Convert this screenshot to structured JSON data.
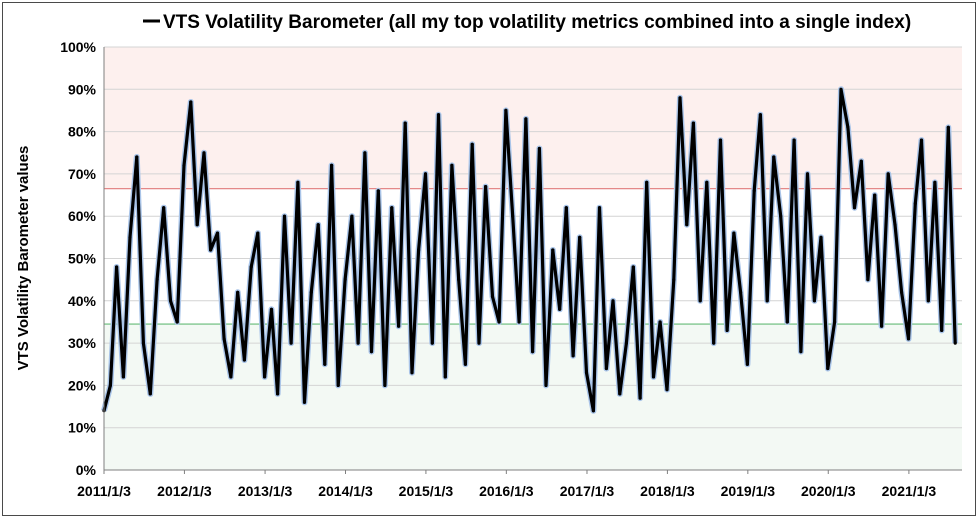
{
  "chart_data": {
    "type": "line",
    "title": "VTS Volatility Barometer  (all my top volatility metrics combined into a single index)",
    "legend": {
      "entry": "VTS Volatility Barometer  (all my top volatility metrics combined into a single index)",
      "placement": "top"
    },
    "ylabel": "VTS Volatility Barometer values",
    "xlabel": "",
    "y_unit": "percent",
    "ylim": [
      0,
      100
    ],
    "y_ticks": [
      0,
      10,
      20,
      30,
      40,
      50,
      60,
      70,
      80,
      90,
      100
    ],
    "y_tick_labels": [
      "0%",
      "10%",
      "20%",
      "30%",
      "40%",
      "50%",
      "60%",
      "70%",
      "80%",
      "90%",
      "100%"
    ],
    "x_ticks": [
      "2011/1/3",
      "2012/1/3",
      "2013/1/3",
      "2014/1/3",
      "2015/1/3",
      "2016/1/3",
      "2017/1/3",
      "2018/1/3",
      "2019/1/3",
      "2020/1/3",
      "2021/1/3"
    ],
    "xlim": [
      "2011/1/3",
      "2021/9/1"
    ],
    "grid": true,
    "reference_lines": [
      {
        "value": 66.5,
        "color": "#e07a7a"
      },
      {
        "value": 34.5,
        "color": "#66bb77"
      }
    ],
    "zones": [
      {
        "from": 66.5,
        "to": 100,
        "color": "#fdf0ee"
      },
      {
        "from": 34.5,
        "to": 66.5,
        "color": "#ffffff"
      },
      {
        "from": 0,
        "to": 34.5,
        "color": "#f3f9f4"
      }
    ],
    "series": [
      {
        "name": "VTS Volatility Barometer  (all my top volatility metrics combined into a single index)",
        "color": "#000000",
        "x": [
          "2011-01-03",
          "2011-02-01",
          "2011-03-01",
          "2011-04-01",
          "2011-05-01",
          "2011-06-01",
          "2011-07-01",
          "2011-08-01",
          "2011-09-01",
          "2011-10-01",
          "2011-11-01",
          "2011-12-01",
          "2012-01-01",
          "2012-02-01",
          "2012-03-01",
          "2012-04-01",
          "2012-05-01",
          "2012-06-01",
          "2012-07-01",
          "2012-08-01",
          "2012-09-01",
          "2012-10-01",
          "2012-11-01",
          "2012-12-01",
          "2013-01-01",
          "2013-02-01",
          "2013-03-01",
          "2013-04-01",
          "2013-05-01",
          "2013-06-01",
          "2013-07-01",
          "2013-08-01",
          "2013-09-01",
          "2013-10-01",
          "2013-11-01",
          "2013-12-01",
          "2014-01-01",
          "2014-02-01",
          "2014-03-01",
          "2014-04-01",
          "2014-05-01",
          "2014-06-01",
          "2014-07-01",
          "2014-08-01",
          "2014-09-01",
          "2014-10-01",
          "2014-11-01",
          "2014-12-01",
          "2015-01-01",
          "2015-02-01",
          "2015-03-01",
          "2015-04-01",
          "2015-05-01",
          "2015-06-01",
          "2015-07-01",
          "2015-08-01",
          "2015-09-01",
          "2015-10-01",
          "2015-11-01",
          "2015-12-01",
          "2016-01-01",
          "2016-02-01",
          "2016-03-01",
          "2016-04-01",
          "2016-05-01",
          "2016-06-01",
          "2016-07-01",
          "2016-08-01",
          "2016-09-01",
          "2016-10-01",
          "2016-11-01",
          "2016-12-01",
          "2017-01-01",
          "2017-02-01",
          "2017-03-01",
          "2017-04-01",
          "2017-05-01",
          "2017-06-01",
          "2017-07-01",
          "2017-08-01",
          "2017-09-01",
          "2017-10-01",
          "2017-11-01",
          "2017-12-01",
          "2018-01-01",
          "2018-02-01",
          "2018-03-01",
          "2018-04-01",
          "2018-05-01",
          "2018-06-01",
          "2018-07-01",
          "2018-08-01",
          "2018-09-01",
          "2018-10-01",
          "2018-11-01",
          "2018-12-01",
          "2019-01-01",
          "2019-02-01",
          "2019-03-01",
          "2019-04-01",
          "2019-05-01",
          "2019-06-01",
          "2019-07-01",
          "2019-08-01",
          "2019-09-01",
          "2019-10-01",
          "2019-11-01",
          "2019-12-01",
          "2020-01-01",
          "2020-02-01",
          "2020-03-01",
          "2020-04-01",
          "2020-05-01",
          "2020-06-01",
          "2020-07-01",
          "2020-08-01",
          "2020-09-01",
          "2020-10-01",
          "2020-11-01",
          "2020-12-01",
          "2021-01-01",
          "2021-02-01",
          "2021-03-01",
          "2021-04-01",
          "2021-05-01",
          "2021-06-01",
          "2021-07-01",
          "2021-08-01"
        ],
        "values": [
          14,
          20,
          48,
          22,
          55,
          74,
          30,
          18,
          45,
          62,
          40,
          35,
          72,
          87,
          58,
          75,
          52,
          56,
          31,
          22,
          42,
          26,
          48,
          56,
          22,
          38,
          18,
          60,
          30,
          68,
          16,
          42,
          58,
          25,
          72,
          20,
          45,
          60,
          30,
          75,
          28,
          66,
          20,
          62,
          34,
          82,
          23,
          52,
          70,
          30,
          84,
          22,
          72,
          45,
          25,
          77,
          30,
          67,
          41,
          35,
          85,
          60,
          35,
          83,
          28,
          76,
          20,
          52,
          38,
          62,
          27,
          55,
          23,
          14,
          62,
          24,
          40,
          18,
          30,
          48,
          17,
          68,
          22,
          35,
          19,
          45,
          88,
          58,
          82,
          40,
          68,
          30,
          78,
          33,
          56,
          42,
          25,
          66,
          84,
          40,
          74,
          60,
          35,
          78,
          28,
          70,
          40,
          55,
          24,
          35,
          90,
          81,
          62,
          73,
          45,
          65,
          34,
          70,
          58,
          42,
          31,
          63,
          78,
          40,
          68,
          33,
          81,
          30
        ]
      }
    ]
  }
}
